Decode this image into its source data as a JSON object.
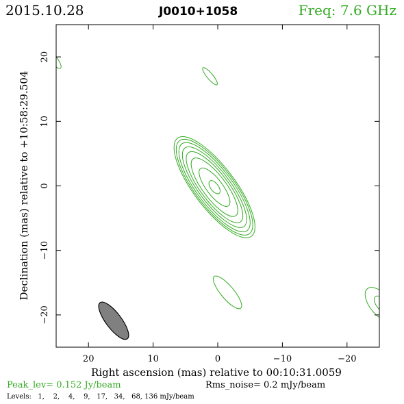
{
  "header": {
    "date": "2015.10.28",
    "source": "J0010+1058",
    "frequency": "Freq: 7.6 GHz"
  },
  "footer": {
    "peak": "Peak_lev=  0.152 Jy/beam",
    "rms": "Rms_noise=  0.2 mJy/beam",
    "levels": "Levels:   1,    2,    4,    9,   17,   34,   68, 136 mJy/beam"
  },
  "colors": {
    "contour": "#33aa22",
    "beam_fill": "#808080",
    "frame": "#000000"
  },
  "chart_data": {
    "type": "contour",
    "xlabel": "Right ascension (mas) relative to 00:10:31.0059",
    "ylabel": "Declination (mas) relative to +10:58:29.504",
    "xlim": [
      25,
      -25
    ],
    "ylim": [
      -25,
      25
    ],
    "x_ticks": [
      20,
      10,
      0,
      -10,
      -20
    ],
    "x_tick_labels": [
      "20",
      "10",
      "0",
      "−10",
      "−20"
    ],
    "y_ticks": [
      -20,
      -10,
      0,
      10,
      20
    ],
    "y_tick_labels": [
      "−20",
      "−10",
      "0",
      "10",
      "20"
    ],
    "levels_mJy": [
      1,
      2,
      4,
      9,
      17,
      34,
      68,
      136
    ],
    "peak_Jy_per_beam": 0.152,
    "rms_noise_mJy_per_beam": 0.2,
    "main_component": {
      "center": [
        0.5,
        -0.2
      ],
      "position_angle_deg": 143,
      "contours": [
        {
          "level": 1,
          "a": 9.5,
          "b": 3.2
        },
        {
          "level": 2,
          "a": 9.0,
          "b": 3.0
        },
        {
          "level": 4,
          "a": 8.4,
          "b": 2.75
        },
        {
          "level": 9,
          "a": 7.6,
          "b": 2.45
        },
        {
          "level": 17,
          "a": 6.7,
          "b": 2.15
        },
        {
          "level": 34,
          "a": 5.5,
          "b": 1.8
        },
        {
          "level": 68,
          "a": 3.6,
          "b": 1.25
        },
        {
          "level": 136,
          "a": 1.2,
          "b": 0.6
        }
      ]
    },
    "weak_features": [
      {
        "center": [
          1.2,
          17.0
        ],
        "a": 1.7,
        "b": 0.45,
        "position_angle_deg": 140
      },
      {
        "center": [
          -1.5,
          -16.5
        ],
        "a": 3.2,
        "b": 1.0,
        "position_angle_deg": 140
      },
      {
        "center": [
          25.6,
          19.8
        ],
        "a": 2.0,
        "b": 0.6,
        "position_angle_deg": 140
      },
      {
        "center": [
          -25.2,
          -18.4
        ],
        "a": 3.2,
        "b": 1.6,
        "position_angle_deg": 140
      },
      {
        "center": [
          -25.4,
          -18.4
        ],
        "a": 1.6,
        "b": 0.8,
        "position_angle_deg": 140
      }
    ],
    "beam": {
      "center": [
        16.1,
        -20.9
      ],
      "major": 7.0,
      "minor": 2.4,
      "position_angle_deg": 143
    }
  }
}
